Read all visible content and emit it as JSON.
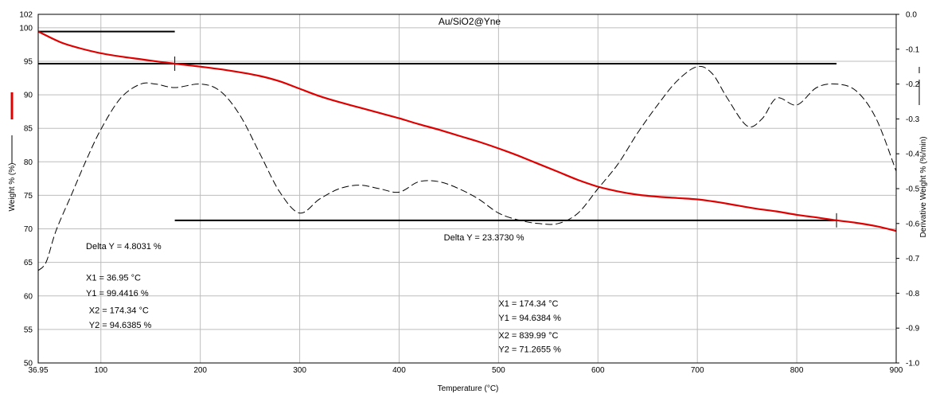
{
  "chart_data": {
    "type": "line",
    "title": "Au/SiO2@Yne",
    "xlabel": "Temperature (°C)",
    "ylabel": "Weight % (%)",
    "ylabel_right": "Derivative Weight % (%/min)",
    "xlim": [
      36.95,
      900
    ],
    "ylim": [
      50,
      102
    ],
    "y2lim": [
      -1.0,
      0.0
    ],
    "x_ticks": [
      "36.95",
      "100",
      "200",
      "300",
      "400",
      "500",
      "600",
      "700",
      "800",
      "900"
    ],
    "y_ticks": [
      "50",
      "55",
      "60",
      "65",
      "70",
      "75",
      "80",
      "85",
      "90",
      "95",
      "100",
      "102"
    ],
    "y2_ticks": [
      "-1.0",
      "-0.9",
      "-0.8",
      "-0.7",
      "-0.6",
      "-0.5",
      "-0.4",
      "-0.3",
      "-0.2",
      "-0.1",
      "0.0"
    ],
    "grid": true,
    "colors": {
      "weight": "#e00000",
      "derivative": "#000000",
      "markers": "#000000"
    },
    "series": [
      {
        "name": "Weight % (%)",
        "axis": "left",
        "style": "solid-red",
        "x": [
          36.95,
          60,
          80,
          100,
          120,
          140,
          160,
          174.34,
          200,
          230,
          260,
          280,
          300,
          320,
          340,
          360,
          380,
          400,
          420,
          440,
          460,
          480,
          500,
          520,
          540,
          560,
          580,
          600,
          620,
          640,
          660,
          680,
          700,
          720,
          740,
          760,
          780,
          800,
          820,
          839.99,
          860,
          880,
          900
        ],
        "values": [
          99.44,
          97.8,
          96.9,
          96.2,
          95.7,
          95.3,
          94.9,
          94.64,
          94.2,
          93.6,
          92.8,
          92.0,
          90.9,
          89.8,
          88.9,
          88.1,
          87.3,
          86.5,
          85.6,
          84.8,
          83.9,
          83.0,
          82.0,
          80.9,
          79.7,
          78.5,
          77.3,
          76.3,
          75.6,
          75.1,
          74.8,
          74.6,
          74.4,
          74.0,
          73.5,
          73.0,
          72.6,
          72.1,
          71.7,
          71.27,
          70.9,
          70.4,
          69.7
        ]
      },
      {
        "name": "Derivative Weight % (%/min)",
        "axis": "right",
        "style": "dashed-black",
        "x": [
          36.95,
          45,
          55,
          70,
          85,
          100,
          120,
          140,
          155,
          174.34,
          200,
          220,
          240,
          260,
          280,
          300,
          320,
          340,
          360,
          380,
          400,
          420,
          440,
          460,
          480,
          500,
          520,
          540,
          560,
          580,
          600,
          620,
          640,
          660,
          680,
          700,
          715,
          730,
          750,
          765,
          780,
          800,
          820,
          840,
          860,
          880,
          900
        ],
        "values": [
          -0.735,
          -0.71,
          -0.62,
          -0.52,
          -0.42,
          -0.33,
          -0.24,
          -0.2,
          -0.2,
          -0.21,
          -0.2,
          -0.22,
          -0.29,
          -0.4,
          -0.51,
          -0.57,
          -0.53,
          -0.5,
          -0.49,
          -0.5,
          -0.51,
          -0.48,
          -0.48,
          -0.5,
          -0.53,
          -0.57,
          -0.59,
          -0.6,
          -0.6,
          -0.57,
          -0.5,
          -0.43,
          -0.34,
          -0.26,
          -0.19,
          -0.15,
          -0.17,
          -0.24,
          -0.32,
          -0.3,
          -0.24,
          -0.26,
          -0.21,
          -0.2,
          -0.22,
          -0.3,
          -0.45
        ]
      }
    ],
    "markers": [
      {
        "kind": "hline",
        "axis": "left",
        "y": 99.44,
        "x1": 36.95,
        "x2": 174.34
      },
      {
        "kind": "hline",
        "axis": "left",
        "y": 94.64,
        "x1": 36.95,
        "x2": 839.99
      },
      {
        "kind": "hline",
        "axis": "left",
        "y": 71.27,
        "x1": 174.34,
        "x2": 839.99
      },
      {
        "kind": "vtick",
        "axis": "left",
        "x": 174.34,
        "y": 94.64
      },
      {
        "kind": "vtick",
        "axis": "left",
        "x": 839.99,
        "y": 71.27
      }
    ],
    "annotations": [
      {
        "text": "Delta Y = 4.8031 %",
        "x": 85,
        "y": 67
      },
      {
        "text": "X1 = 36.95 °C",
        "x": 85,
        "y": 62.3
      },
      {
        "text": "Y1 = 99.4416 %",
        "x": 85,
        "y": 60.0
      },
      {
        "text": "X2 = 174.34 °C",
        "x": 88,
        "y": 57.4
      },
      {
        "text": "Y2 = 94.6385 %",
        "x": 88,
        "y": 55.2
      },
      {
        "text": "Delta Y = 23.3730 %",
        "x": 445,
        "y": 68.3
      },
      {
        "text": "X1 = 174.34 °C",
        "x": 500,
        "y": 58.4
      },
      {
        "text": "Y1 = 94.6384 %",
        "x": 500,
        "y": 56.3
      },
      {
        "text": "X2 = 839.99 °C",
        "x": 500,
        "y": 53.7
      },
      {
        "text": "Y2 = 71.2655 %",
        "x": 500,
        "y": 51.6
      }
    ]
  }
}
